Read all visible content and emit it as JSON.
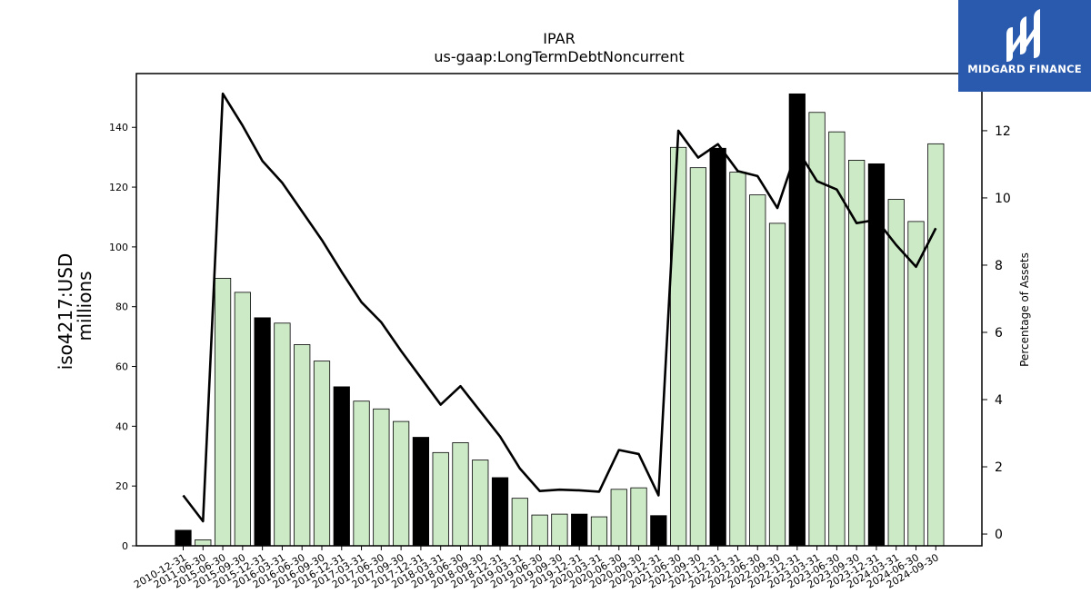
{
  "chart_data": {
    "type": "bar",
    "title": "IPAR",
    "subtitle": "us-gaap:LongTermDebtNoncurrent",
    "ylabel": "iso4217:USD",
    "ylabel_line2": "millions",
    "y2label": "Percentage of Assets",
    "ylim": [
      0,
      158
    ],
    "y2lim": [
      -0.35,
      13.7
    ],
    "yticks": [
      0,
      20,
      40,
      60,
      80,
      100,
      120,
      140
    ],
    "y2ticks": [
      0,
      2,
      4,
      6,
      8,
      10,
      12
    ],
    "grid": false,
    "categories": [
      "2010-12-31",
      "2011-06-30",
      "2015-06-30",
      "2015-09-30",
      "2015-12-31",
      "2016-03-31",
      "2016-06-30",
      "2016-09-30",
      "2016-12-31",
      "2017-03-31",
      "2017-06-30",
      "2017-09-30",
      "2017-12-31",
      "2018-03-31",
      "2018-06-30",
      "2018-09-30",
      "2018-12-31",
      "2019-03-31",
      "2019-06-30",
      "2019-09-30",
      "2019-12-31",
      "2020-03-31",
      "2020-06-30",
      "2020-09-30",
      "2020-12-31",
      "2021-06-30",
      "2021-09-30",
      "2021-12-31",
      "2022-03-31",
      "2022-06-30",
      "2022-09-30",
      "2022-12-31",
      "2023-03-31",
      "2023-06-30",
      "2023-09-30",
      "2023-12-31",
      "2024-03-31",
      "2024-06-30",
      "2024-09-30"
    ],
    "series": [
      {
        "kind": "bar",
        "values": [
          5.2,
          2.0,
          89.5,
          84.8,
          76.3,
          74.5,
          67.3,
          61.8,
          53.2,
          48.4,
          45.8,
          41.6,
          36.3,
          31.2,
          34.5,
          28.7,
          22.8,
          15.9,
          10.3,
          10.6,
          10.6,
          9.7,
          18.9,
          19.4,
          10.1,
          133.3,
          126.5,
          133.0,
          125.0,
          117.4,
          107.9,
          151.2,
          145.0,
          138.5,
          129.0,
          127.8,
          115.9,
          108.5,
          134.5
        ],
        "colors": [
          "#000000",
          "#cdeac7",
          "#cdeac7",
          "#cdeac7",
          "#000000",
          "#cdeac7",
          "#cdeac7",
          "#cdeac7",
          "#000000",
          "#cdeac7",
          "#cdeac7",
          "#cdeac7",
          "#000000",
          "#cdeac7",
          "#cdeac7",
          "#cdeac7",
          "#000000",
          "#cdeac7",
          "#cdeac7",
          "#cdeac7",
          "#000000",
          "#cdeac7",
          "#cdeac7",
          "#cdeac7",
          "#000000",
          "#cdeac7",
          "#cdeac7",
          "#000000",
          "#cdeac7",
          "#cdeac7",
          "#cdeac7",
          "#000000",
          "#cdeac7",
          "#cdeac7",
          "#cdeac7",
          "#000000",
          "#cdeac7",
          "#cdeac7",
          "#cdeac7"
        ]
      },
      {
        "kind": "line",
        "axis": "right",
        "color": "#000000",
        "values": [
          1.15,
          0.38,
          13.1,
          12.15,
          11.1,
          10.45,
          9.6,
          8.75,
          7.8,
          6.9,
          6.3,
          5.45,
          4.65,
          3.85,
          4.4,
          3.65,
          2.9,
          1.95,
          1.28,
          1.32,
          1.3,
          1.26,
          2.5,
          2.38,
          1.15,
          12.0,
          11.2,
          11.6,
          10.8,
          10.65,
          9.7,
          11.45,
          10.5,
          10.25,
          9.25,
          9.35,
          8.6,
          7.95,
          9.1
        ]
      }
    ]
  },
  "logo": {
    "name": "MIDGARD FINANCE"
  }
}
